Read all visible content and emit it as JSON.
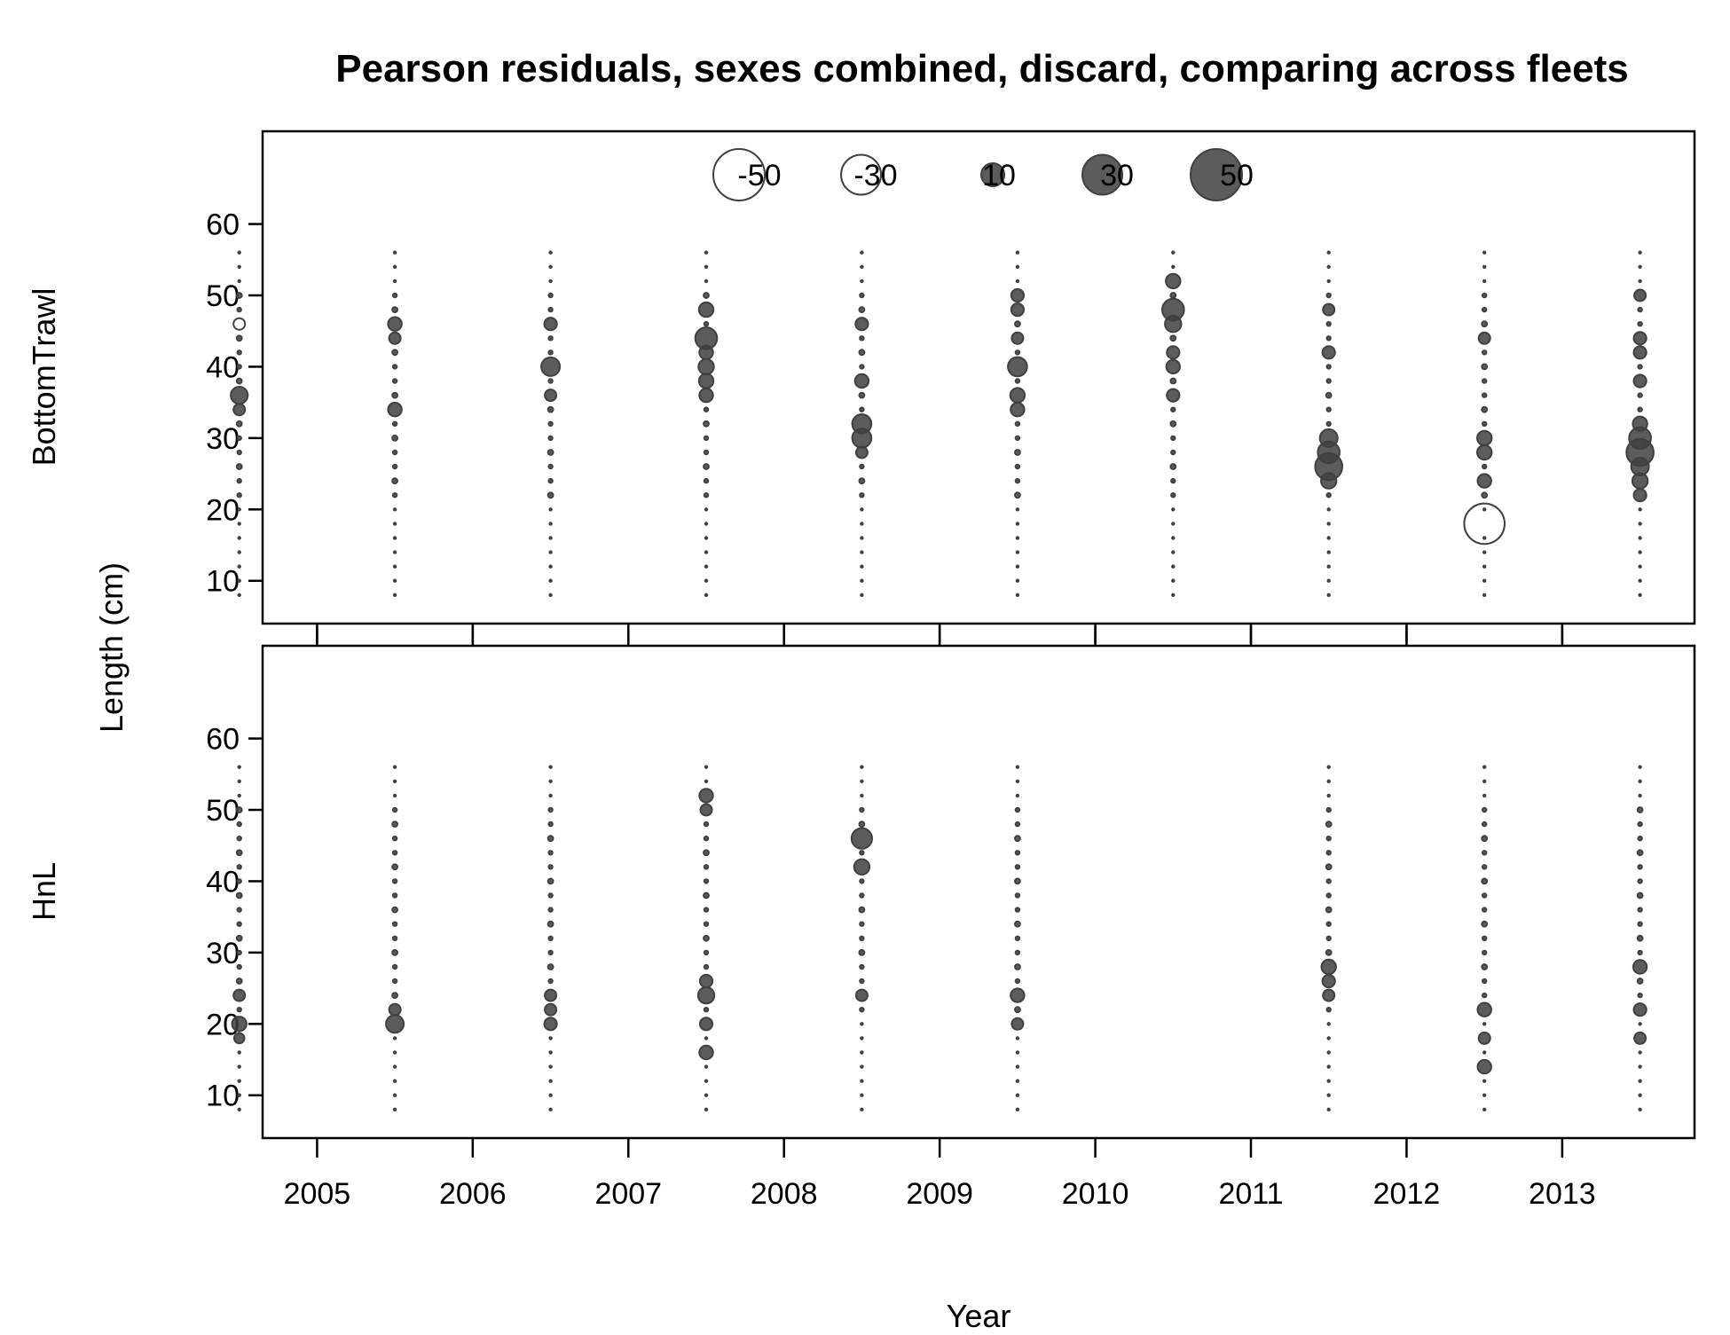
{
  "chart_data": {
    "type": "bubble",
    "title": "Pearson residuals, sexes combined, discard, comparing across fleets",
    "xlabel": "Year",
    "ylabel": "Length (cm)",
    "years": [
      2004.5,
      2005.5,
      2006.5,
      2007.5,
      2008.5,
      2009.5,
      2010.5,
      2011.5,
      2012.5,
      2013.5
    ],
    "xlim": [
      2004.65,
      2013.85
    ],
    "xticks": [
      2005,
      2006,
      2007,
      2008,
      2009,
      2010,
      2011,
      2012,
      2013
    ],
    "ylim": [
      4,
      73
    ],
    "yticks": [
      10,
      20,
      30,
      40,
      50,
      60
    ],
    "legend": {
      "position": "top",
      "values": [
        -50,
        -30,
        10,
        30,
        50
      ],
      "labels": [
        "-50",
        "-30",
        "10",
        "30",
        "50"
      ]
    },
    "colors": {
      "negative_fill": "#ffffff",
      "positive_fill": "#404040",
      "outline": "#404040"
    },
    "panels": [
      {
        "name": "BottomTrawl",
        "big": [
          {
            "year": 2004.5,
            "length": 36,
            "value": 5.5
          },
          {
            "year": 2004.5,
            "length": 46,
            "value": -2.5
          },
          {
            "year": 2004.5,
            "length": 34,
            "value": 2.5
          },
          {
            "year": 2005.5,
            "length": 46,
            "value": 3.5
          },
          {
            "year": 2005.5,
            "length": 34,
            "value": 3.5
          },
          {
            "year": 2005.5,
            "length": 44,
            "value": 2.5
          },
          {
            "year": 2006.5,
            "length": 40,
            "value": 6.5
          },
          {
            "year": 2006.5,
            "length": 46,
            "value": 3
          },
          {
            "year": 2006.5,
            "length": 36,
            "value": 2.5
          },
          {
            "year": 2007.5,
            "length": 44,
            "value": 9
          },
          {
            "year": 2007.5,
            "length": 48,
            "value": 4
          },
          {
            "year": 2007.5,
            "length": 40,
            "value": 4.5
          },
          {
            "year": 2007.5,
            "length": 38,
            "value": 4
          },
          {
            "year": 2007.5,
            "length": 36,
            "value": 3.5
          },
          {
            "year": 2007.5,
            "length": 42,
            "value": 3.5
          },
          {
            "year": 2008.5,
            "length": 32,
            "value": 7
          },
          {
            "year": 2008.5,
            "length": 30,
            "value": 7
          },
          {
            "year": 2008.5,
            "length": 38,
            "value": 3.5
          },
          {
            "year": 2008.5,
            "length": 28,
            "value": 2.5
          },
          {
            "year": 2008.5,
            "length": 46,
            "value": 3
          },
          {
            "year": 2009.5,
            "length": 40,
            "value": 7
          },
          {
            "year": 2009.5,
            "length": 36,
            "value": 4
          },
          {
            "year": 2009.5,
            "length": 34,
            "value": 3.5
          },
          {
            "year": 2009.5,
            "length": 48,
            "value": 3
          },
          {
            "year": 2009.5,
            "length": 50,
            "value": 3
          },
          {
            "year": 2009.5,
            "length": 44,
            "value": 2.5
          },
          {
            "year": 2010.5,
            "length": 48,
            "value": 9
          },
          {
            "year": 2010.5,
            "length": 46,
            "value": 5
          },
          {
            "year": 2010.5,
            "length": 52,
            "value": 4
          },
          {
            "year": 2010.5,
            "length": 40,
            "value": 3.5
          },
          {
            "year": 2010.5,
            "length": 36,
            "value": 3
          },
          {
            "year": 2010.5,
            "length": 42,
            "value": 3
          },
          {
            "year": 2011.5,
            "length": 26,
            "value": 14
          },
          {
            "year": 2011.5,
            "length": 28,
            "value": 9
          },
          {
            "year": 2011.5,
            "length": 30,
            "value": 6
          },
          {
            "year": 2011.5,
            "length": 24,
            "value": 4.5
          },
          {
            "year": 2011.5,
            "length": 42,
            "value": 3
          },
          {
            "year": 2011.5,
            "length": 48,
            "value": 2.5
          },
          {
            "year": 2012.5,
            "length": 18,
            "value": -31
          },
          {
            "year": 2012.5,
            "length": 30,
            "value": 4
          },
          {
            "year": 2012.5,
            "length": 28,
            "value": 4
          },
          {
            "year": 2012.5,
            "length": 24,
            "value": 3.5
          },
          {
            "year": 2012.5,
            "length": 44,
            "value": 2.5
          },
          {
            "year": 2013.5,
            "length": 28,
            "value": 14
          },
          {
            "year": 2013.5,
            "length": 30,
            "value": 9
          },
          {
            "year": 2013.5,
            "length": 26,
            "value": 6
          },
          {
            "year": 2013.5,
            "length": 24,
            "value": 4.5
          },
          {
            "year": 2013.5,
            "length": 32,
            "value": 4
          },
          {
            "year": 2013.5,
            "length": 22,
            "value": 3
          },
          {
            "year": 2013.5,
            "length": 44,
            "value": 3
          },
          {
            "year": 2013.5,
            "length": 42,
            "value": 3
          },
          {
            "year": 2013.5,
            "length": 38,
            "value": 3
          },
          {
            "year": 2013.5,
            "length": 50,
            "value": 2.5
          }
        ]
      },
      {
        "name": "HnL",
        "big": [
          {
            "year": 2004.5,
            "length": 20,
            "value": 4
          },
          {
            "year": 2004.5,
            "length": 18,
            "value": 2
          },
          {
            "year": 2004.5,
            "length": 24,
            "value": 2.5
          },
          {
            "year": 2005.5,
            "length": 20,
            "value": 6
          },
          {
            "year": 2005.5,
            "length": 22,
            "value": 2.5
          },
          {
            "year": 2006.5,
            "length": 20,
            "value": 3
          },
          {
            "year": 2006.5,
            "length": 22,
            "value": 2.5
          },
          {
            "year": 2006.5,
            "length": 24,
            "value": 2.5
          },
          {
            "year": 2007.5,
            "length": 24,
            "value": 5
          },
          {
            "year": 2007.5,
            "length": 52,
            "value": 3.5
          },
          {
            "year": 2007.5,
            "length": 16,
            "value": 3.5
          },
          {
            "year": 2007.5,
            "length": 20,
            "value": 3
          },
          {
            "year": 2007.5,
            "length": 26,
            "value": 3
          },
          {
            "year": 2007.5,
            "length": 50,
            "value": 2.5
          },
          {
            "year": 2008.5,
            "length": 46,
            "value": 8
          },
          {
            "year": 2008.5,
            "length": 42,
            "value": 4.5
          },
          {
            "year": 2008.5,
            "length": 24,
            "value": 2.5
          },
          {
            "year": 2009.5,
            "length": 24,
            "value": 3.5
          },
          {
            "year": 2009.5,
            "length": 20,
            "value": 2.5
          },
          {
            "year": 2011.5,
            "length": 28,
            "value": 4
          },
          {
            "year": 2011.5,
            "length": 26,
            "value": 3
          },
          {
            "year": 2011.5,
            "length": 24,
            "value": 2.5
          },
          {
            "year": 2012.5,
            "length": 22,
            "value": 3.5
          },
          {
            "year": 2012.5,
            "length": 14,
            "value": 3.5
          },
          {
            "year": 2012.5,
            "length": 18,
            "value": 2.5
          },
          {
            "year": 2013.5,
            "length": 28,
            "value": 3.5
          },
          {
            "year": 2013.5,
            "length": 22,
            "value": 3
          },
          {
            "year": 2013.5,
            "length": 18,
            "value": 2.5
          }
        ]
      }
    ]
  }
}
